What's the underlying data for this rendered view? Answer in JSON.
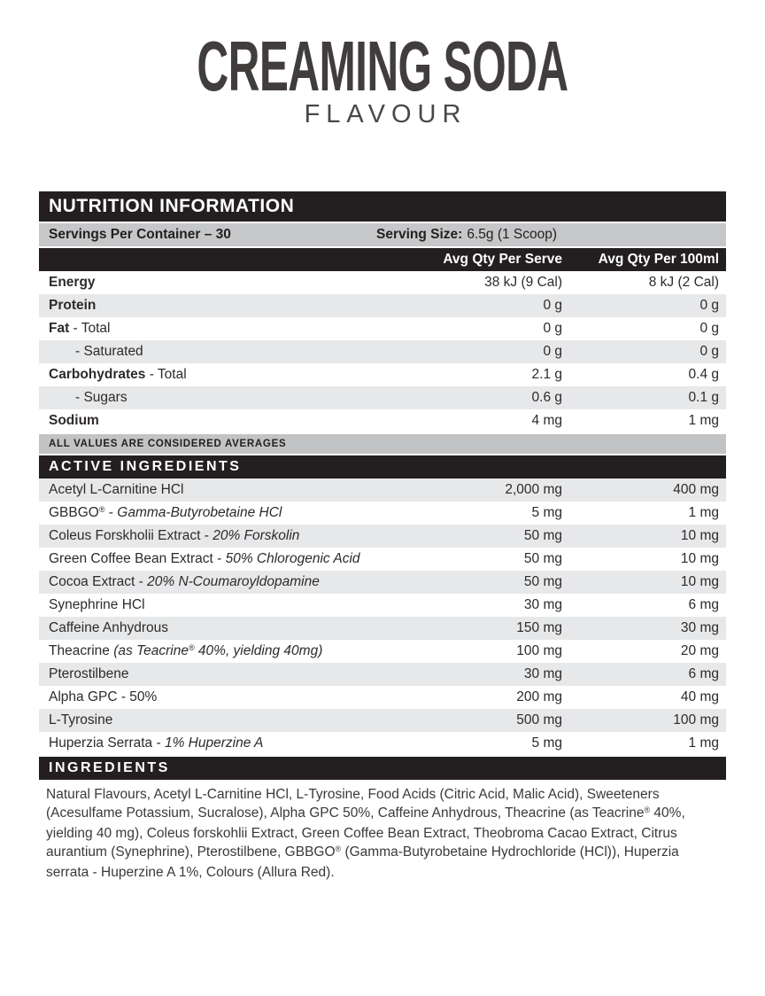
{
  "colors": {
    "bar_black": "#231f20",
    "band_gray": "#c6c7c9",
    "row_shaded": "#e7e8e9",
    "title_text": "#423d3d",
    "body_text": "#2e2a2b"
  },
  "header": {
    "title": "CREAMING SODA",
    "subtitle": "FLAVOUR"
  },
  "nutrition": {
    "section_title": "NUTRITION INFORMATION",
    "servings_per_container": "Servings Per Container – 30",
    "serving_size_label": "Serving Size:",
    "serving_size_value": "6.5g (1 Scoop)",
    "columns": {
      "serve": "Avg Qty Per Serve",
      "per_100ml": "Avg Qty Per 100ml"
    },
    "rows": [
      {
        "segments": [
          {
            "t": "Energy",
            "s": "b"
          }
        ],
        "serve": "38 kJ (9 Cal)",
        "per100": "8 kJ (2 Cal)",
        "shaded": false
      },
      {
        "segments": [
          {
            "t": "Protein",
            "s": "b"
          }
        ],
        "serve": "0 g",
        "per100": "0 g",
        "shaded": true
      },
      {
        "segments": [
          {
            "t": "Fat",
            "s": "b"
          },
          {
            "t": " - Total",
            "s": "r"
          }
        ],
        "serve": "0 g",
        "per100": "0 g",
        "shaded": false
      },
      {
        "segments": [
          {
            "t": "- Saturated",
            "s": "r"
          }
        ],
        "indent": true,
        "serve": "0 g",
        "per100": "0 g",
        "shaded": true
      },
      {
        "segments": [
          {
            "t": "Carbohydrates",
            "s": "b"
          },
          {
            "t": " - Total",
            "s": "r"
          }
        ],
        "serve": "2.1 g",
        "per100": "0.4 g",
        "shaded": false
      },
      {
        "segments": [
          {
            "t": "- Sugars",
            "s": "r"
          }
        ],
        "indent": true,
        "serve": "0.6 g",
        "per100": "0.1 g",
        "shaded": true
      },
      {
        "segments": [
          {
            "t": "Sodium",
            "s": "b"
          }
        ],
        "serve": "4 mg",
        "per100": "1 mg",
        "shaded": false
      }
    ],
    "averages_note": "ALL VALUES ARE CONSIDERED AVERAGES"
  },
  "active_ingredients": {
    "section_title": "ACTIVE INGREDIENTS",
    "rows": [
      {
        "segments": [
          {
            "t": "Acetyl L-Carnitine HCl",
            "s": "r"
          }
        ],
        "serve": "2,000 mg",
        "per100": "400 mg",
        "shaded": true
      },
      {
        "segments": [
          {
            "t": "GBBGO",
            "s": "r"
          },
          {
            "t": "®",
            "s": "sup"
          },
          {
            "t": " - ",
            "s": "r"
          },
          {
            "t": "Gamma-Butyrobetaine HCl",
            "s": "i"
          }
        ],
        "serve": "5 mg",
        "per100": "1 mg",
        "shaded": false
      },
      {
        "segments": [
          {
            "t": "Coleus Forskholii Extract - ",
            "s": "r"
          },
          {
            "t": "20% Forskolin",
            "s": "i"
          }
        ],
        "serve": "50 mg",
        "per100": "10 mg",
        "shaded": true
      },
      {
        "segments": [
          {
            "t": "Green Coffee Bean Extract - ",
            "s": "r"
          },
          {
            "t": "50% Chlorogenic Acid",
            "s": "i"
          }
        ],
        "serve": "50 mg",
        "per100": "10 mg",
        "shaded": false
      },
      {
        "segments": [
          {
            "t": "Cocoa Extract - ",
            "s": "r"
          },
          {
            "t": "20% N-Coumaroyldopamine",
            "s": "i"
          }
        ],
        "serve": "50 mg",
        "per100": "10 mg",
        "shaded": true
      },
      {
        "segments": [
          {
            "t": "Synephrine HCl",
            "s": "r"
          }
        ],
        "serve": "30 mg",
        "per100": "6 mg",
        "shaded": false
      },
      {
        "segments": [
          {
            "t": "Caffeine Anhydrous",
            "s": "r"
          }
        ],
        "serve": "150 mg",
        "per100": "30 mg",
        "shaded": true
      },
      {
        "segments": [
          {
            "t": "Theacrine ",
            "s": "r"
          },
          {
            "t": "(as Teacrine",
            "s": "i"
          },
          {
            "t": "®",
            "s": "is"
          },
          {
            "t": " 40%, yielding 40mg)",
            "s": "i"
          }
        ],
        "serve": "100 mg",
        "per100": "20 mg",
        "shaded": false
      },
      {
        "segments": [
          {
            "t": "Pterostilbene",
            "s": "r"
          }
        ],
        "serve": "30 mg",
        "per100": "6 mg",
        "shaded": true
      },
      {
        "segments": [
          {
            "t": "Alpha GPC - 50%",
            "s": "r"
          }
        ],
        "serve": "200 mg",
        "per100": "40 mg",
        "shaded": false
      },
      {
        "segments": [
          {
            "t": "L-Tyrosine",
            "s": "r"
          }
        ],
        "serve": "500 mg",
        "per100": "100 mg",
        "shaded": true
      },
      {
        "segments": [
          {
            "t": "Huperzia Serrata - ",
            "s": "r"
          },
          {
            "t": "1% Huperzine A",
            "s": "i"
          }
        ],
        "serve": "5 mg",
        "per100": "1 mg",
        "shaded": false
      }
    ]
  },
  "ingredients": {
    "section_title": "INGREDIENTS",
    "segments": [
      {
        "t": "Natural Flavours, Acetyl L-Carnitine HCl, L-Tyrosine, Food Acids (Citric Acid, Malic Acid), Sweeteners (Acesulfame Potassium, Sucralose), Alpha GPC 50%, Caffeine Anhydrous, Theacrine (as Teacrine",
        "s": "r"
      },
      {
        "t": "®",
        "s": "sup"
      },
      {
        "t": " 40%, yielding 40 mg), Coleus forskohlii Extract, Green Coffee Bean Extract, Theobroma Cacao Extract, Citrus aurantium (Synephrine), Pterostilbene, GBBGO",
        "s": "r"
      },
      {
        "t": "®",
        "s": "sup"
      },
      {
        "t": " (Gamma-Butyrobetaine Hydrochloride (HCl)), Huperzia serrata - Huperzine A 1%, Colours (Allura Red).",
        "s": "r"
      }
    ]
  }
}
